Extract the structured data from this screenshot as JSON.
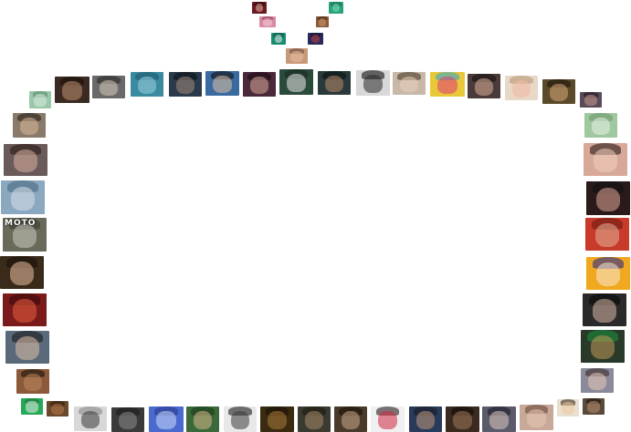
{
  "thumbnails": [
    {
      "name": "face-thumbnail",
      "bg": "#6b1a22",
      "fg": "#e8b5a0",
      "hair": "#2a0c0c"
    },
    {
      "name": "pattern-thumbnail",
      "bg": "#2aa37a",
      "fg": "#7fe0c0",
      "hair": "#1a6a4c"
    },
    {
      "name": "face-thumbnail",
      "bg": "#d88aa0",
      "fg": "#f5d0d8",
      "hair": "#8a3a50"
    },
    {
      "name": "face-thumbnail",
      "bg": "#8a5a3a",
      "fg": "#d09a70",
      "hair": "#3a2010"
    },
    {
      "name": "billiard-thumbnail",
      "bg": "#1a8a70",
      "fg": "#e8f0ee",
      "hair": "#0a5a48"
    },
    {
      "name": "face-thumbnail",
      "bg": "#2a2a5a",
      "fg": "#c04040",
      "hair": "#101030"
    },
    {
      "name": "face-thumbnail",
      "bg": "#c89a7a",
      "fg": "#e8c0a0",
      "hair": "#6a4a3a"
    },
    {
      "name": "pattern-thumbnail",
      "bg": "#9ac8a8",
      "fg": "#d8ece0",
      "hair": "#5a8a6a"
    },
    {
      "name": "face-thumbnail",
      "bg": "#3a2a22",
      "fg": "#c09070",
      "hair": "#1a1008"
    },
    {
      "name": "face-thumbnail",
      "bg": "#6a6a6a",
      "fg": "#d8c8b8",
      "hair": "#2a2a2a"
    },
    {
      "name": "face-thumbnail",
      "bg": "#3a8aa0",
      "fg": "#9ad0e0",
      "hair": "#1a5a70"
    },
    {
      "name": "face-thumbnail",
      "bg": "#2a3a4a",
      "fg": "#a08a78",
      "hair": "#0a1018"
    },
    {
      "name": "face-thumbnail",
      "bg": "#3a6aa0",
      "fg": "#e0c0a0",
      "hair": "#101010"
    },
    {
      "name": "face-thumbnail",
      "bg": "#4a2a3a",
      "fg": "#d8a898",
      "hair": "#1a0a10"
    },
    {
      "name": "camera-thumbnail",
      "bg": "#2a4a3a",
      "fg": "#e8e8e8",
      "hair": "#1a2a22"
    },
    {
      "name": "face-thumbnail",
      "bg": "#2a3a3a",
      "fg": "#b88868",
      "hair": "#0a1010"
    },
    {
      "name": "tire-thumbnail",
      "bg": "#d8d8d8",
      "fg": "#2a2a2a",
      "hair": "#111111"
    },
    {
      "name": "face-thumbnail",
      "bg": "#c8b8a8",
      "fg": "#e8d0b8",
      "hair": "#4a3a2a"
    },
    {
      "name": "pattern-thumbnail",
      "bg": "#e8c838",
      "fg": "#e03878",
      "hair": "#38a8c8"
    },
    {
      "name": "face-thumbnail",
      "bg": "#4a3a3a",
      "fg": "#d8b098",
      "hair": "#181010"
    },
    {
      "name": "face-thumbnail",
      "bg": "#e8d8c8",
      "fg": "#f0b8a0",
      "hair": "#b89878"
    },
    {
      "name": "face-thumbnail",
      "bg": "#5a4a2a",
      "fg": "#d8a878",
      "hair": "#1a1408"
    },
    {
      "name": "face-thumbnail",
      "bg": "#5a4a5a",
      "fg": "#c89888",
      "hair": "#201820"
    },
    {
      "name": "face-thumbnail",
      "bg": "#8a7a6a",
      "fg": "#d8b898",
      "hair": "#2a2018"
    },
    {
      "name": "pattern-thumbnail",
      "bg": "#a0c8a0",
      "fg": "#e8f0e8",
      "hair": "#6a9a6a"
    },
    {
      "name": "face-thumbnail",
      "bg": "#6a5a5a",
      "fg": "#d8b0a0",
      "hair": "#2a1a18"
    },
    {
      "name": "face-thumbnail",
      "bg": "#d8a898",
      "fg": "#f0d0c0",
      "hair": "#2a1a18"
    },
    {
      "name": "ship-thumbnail",
      "bg": "#8aa8c0",
      "fg": "#d8e0e8",
      "hair": "#4a6a80"
    },
    {
      "name": "face-thumbnail",
      "bg": "#2a1a1a",
      "fg": "#e0a898",
      "hair": "#101010"
    },
    {
      "name": "sign-thumbnail",
      "bg": "#6a6a5a",
      "fg": "#c8c8c0",
      "hair": "#3a3a30",
      "caption": "MOTO"
    },
    {
      "name": "face-thumbnail",
      "bg": "#c83a2a",
      "fg": "#e0b098",
      "hair": "#6a1a10"
    },
    {
      "name": "face-thumbnail",
      "bg": "#3a2a1a",
      "fg": "#e8c0a0",
      "hair": "#1a1008"
    },
    {
      "name": "face-thumbnail",
      "bg": "#f0a820",
      "fg": "#f8e8d0",
      "hair": "#2a2a8a"
    },
    {
      "name": "car-thumbnail",
      "bg": "#7a1a1a",
      "fg": "#e86040",
      "hair": "#3a0a0a"
    },
    {
      "name": "face-thumbnail",
      "bg": "#2a2a2a",
      "fg": "#d8b8a8",
      "hair": "#0a0a0a"
    },
    {
      "name": "face-thumbnail",
      "bg": "#5a6a7a",
      "fg": "#e0c0a8",
      "hair": "#1a1a1a"
    },
    {
      "name": "face-thumbnail",
      "bg": "#2a3a2a",
      "fg": "#c09858",
      "hair": "#1a8a3a"
    },
    {
      "name": "face-thumbnail",
      "bg": "#8a5a3a",
      "fg": "#c08860",
      "hair": "#1a1008"
    },
    {
      "name": "face-thumbnail",
      "bg": "#8a8a9a",
      "fg": "#e8c8b8",
      "hair": "#3a2a2a"
    },
    {
      "name": "billiard-thumbnail",
      "bg": "#28a858",
      "fg": "#e8f0e8",
      "hair": "#18783a"
    },
    {
      "name": "face-thumbnail",
      "bg": "#6a4a2a",
      "fg": "#b87848",
      "hair": "#2a1808"
    },
    {
      "name": "face-thumbnail",
      "bg": "#d8d8d8",
      "fg": "#3a3a3a",
      "hair": "#8a8a8a"
    },
    {
      "name": "face-thumbnail",
      "bg": "#3a3a3a",
      "fg": "#8a8a8a",
      "hair": "#1a1a1a"
    },
    {
      "name": "sky-thumbnail",
      "bg": "#4a6ad0",
      "fg": "#c8d8f8",
      "hair": "#2a3a90"
    },
    {
      "name": "face-thumbnail",
      "bg": "#3a6a3a",
      "fg": "#d8b888",
      "hair": "#1a3a1a"
    },
    {
      "name": "tire-thumbnail",
      "bg": "#e8e8e8",
      "fg": "#3a3a3a",
      "hair": "#1a1a1a"
    },
    {
      "name": "face-thumbnail",
      "bg": "#3a2a10",
      "fg": "#a87838",
      "hair": "#1a1008"
    },
    {
      "name": "face-thumbnail",
      "bg": "#3a3a30",
      "fg": "#a88868",
      "hair": "#1a1a10"
    },
    {
      "name": "face-thumbnail",
      "bg": "#4a3a2a",
      "fg": "#c8a888",
      "hair": "#1a1008"
    },
    {
      "name": "face-thumbnail",
      "bg": "#f0f0f0",
      "fg": "#d02840",
      "hair": "#2a1a1a"
    },
    {
      "name": "face-thumbnail",
      "bg": "#2a3a5a",
      "fg": "#c09878",
      "hair": "#1a1a2a"
    },
    {
      "name": "face-thumbnail",
      "bg": "#3a2a20",
      "fg": "#a07858",
      "hair": "#100a08"
    },
    {
      "name": "face-thumbnail",
      "bg": "#5a5a6a",
      "fg": "#e0c8c0",
      "hair": "#1a1a2a"
    },
    {
      "name": "face-thumbnail",
      "bg": "#c8a898",
      "fg": "#e8c8b8",
      "hair": "#6a4a3a"
    },
    {
      "name": "face-thumbnail",
      "bg": "#e8e0d0",
      "fg": "#f0c8a0",
      "hair": "#3a2a1a"
    },
    {
      "name": "face-thumbnail",
      "bg": "#5a4a3a",
      "fg": "#b89070",
      "hair": "#1a1008"
    },
    {
      "name": "pattern-thumbnail",
      "bg": "#1a3a1a",
      "fg": "#4a8a4a",
      "hair": "#0a1a0a"
    },
    {
      "name": "pattern-thumbnail",
      "bg": "#3a5a2a",
      "fg": "#a8c888",
      "hair": "#1a2a10"
    },
    {
      "name": "face-thumbnail",
      "bg": "#6a3a2a",
      "fg": "#d09070",
      "hair": "#2a1008"
    },
    {
      "name": "face-thumbnail",
      "bg": "#3a2a2a",
      "fg": "#c89878",
      "hair": "#100808"
    }
  ]
}
